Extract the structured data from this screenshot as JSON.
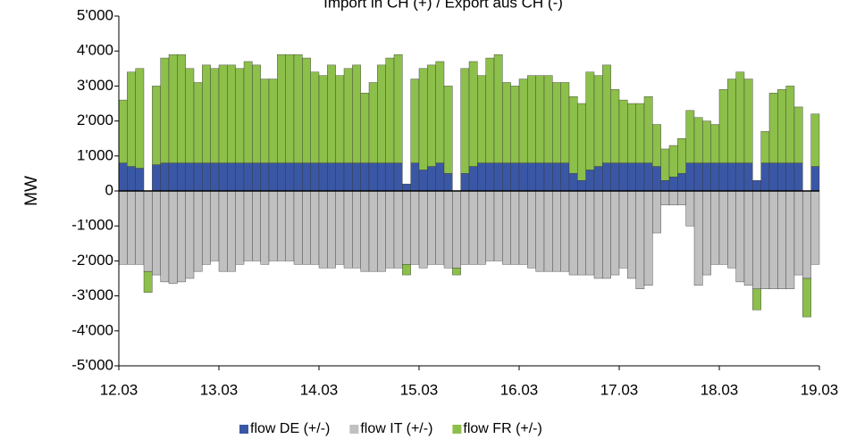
{
  "chart_data": {
    "type": "bar",
    "stacked": true,
    "title": "Import in CH  (+) / Export aus CH (-)",
    "y_label": "MW",
    "xlim": [
      0,
      7
    ],
    "xticks": [
      {
        "value": 0,
        "label": "12.03"
      },
      {
        "value": 1,
        "label": "13.03"
      },
      {
        "value": 2,
        "label": "14.03"
      },
      {
        "value": 3,
        "label": "15.03"
      },
      {
        "value": 4,
        "label": "16.03"
      },
      {
        "value": 5,
        "label": "17.03"
      },
      {
        "value": 6,
        "label": "18.03"
      },
      {
        "value": 7,
        "label": "19.03"
      }
    ],
    "ylim": [
      -5000,
      5000
    ],
    "yticks": [
      {
        "value": -5000,
        "label": "-5'000"
      },
      {
        "value": -4000,
        "label": "-4'000"
      },
      {
        "value": -3000,
        "label": "-3'000"
      },
      {
        "value": -2000,
        "label": "-2'000"
      },
      {
        "value": -1000,
        "label": "-1'000"
      },
      0,
      {
        "value": 1000,
        "label": "1'000"
      },
      {
        "value": 2000,
        "label": "2'000"
      },
      {
        "value": 3000,
        "label": "3'000"
      },
      {
        "value": 4000,
        "label": "4'000"
      },
      {
        "value": 5000,
        "label": "5'000"
      }
    ],
    "legend": "bottom",
    "series": [
      {
        "name": "flow DE (+/-)",
        "color": "#3a57a5",
        "values": [
          800,
          700,
          650,
          0,
          750,
          800,
          800,
          800,
          800,
          800,
          800,
          800,
          800,
          800,
          800,
          800,
          800,
          800,
          800,
          800,
          800,
          800,
          800,
          800,
          800,
          800,
          800,
          800,
          800,
          800,
          800,
          800,
          800,
          800,
          200,
          800,
          600,
          700,
          800,
          500,
          0,
          500,
          700,
          800,
          800,
          800,
          800,
          800,
          800,
          800,
          800,
          800,
          800,
          800,
          500,
          300,
          600,
          700,
          800,
          800,
          800,
          800,
          800,
          800,
          700,
          300,
          400,
          500,
          800,
          800,
          800,
          800,
          800,
          800,
          800,
          800,
          300,
          800,
          800,
          800,
          800,
          800,
          0,
          700
        ]
      },
      {
        "name": "flow IT (+/-)",
        "color": "#c0c0c0",
        "values": [
          -2100,
          -2100,
          -2100,
          -2300,
          -2400,
          -2600,
          -2650,
          -2600,
          -2500,
          -2300,
          -2100,
          -2000,
          -2300,
          -2300,
          -2100,
          -2000,
          -2000,
          -2100,
          -2000,
          -2000,
          -2000,
          -2100,
          -2100,
          -2100,
          -2200,
          -2200,
          -2100,
          -2200,
          -2200,
          -2300,
          -2300,
          -2300,
          -2200,
          -2200,
          -2100,
          -2100,
          -2200,
          -2100,
          -2100,
          -2200,
          -2200,
          -2100,
          -2100,
          -2100,
          -2000,
          -2000,
          -2100,
          -2100,
          -2100,
          -2200,
          -2300,
          -2300,
          -2300,
          -2300,
          -2400,
          -2400,
          -2400,
          -2500,
          -2500,
          -2400,
          -2200,
          -2500,
          -2800,
          -2700,
          -1200,
          -400,
          -400,
          -400,
          -1000,
          -2700,
          -2400,
          -2100,
          -2100,
          -2200,
          -2600,
          -2700,
          -2800,
          -2800,
          -2800,
          -2800,
          -2800,
          -2400,
          -2500,
          -2100
        ]
      },
      {
        "name": "flow FR (+/-)",
        "color": "#8dbf4b",
        "values": [
          1800,
          2700,
          2850,
          -600,
          2250,
          3000,
          3100,
          3100,
          2700,
          2300,
          2800,
          2700,
          2800,
          2800,
          2700,
          2900,
          2800,
          2400,
          2400,
          3100,
          3100,
          3100,
          3000,
          2600,
          2500,
          2800,
          2500,
          2700,
          2800,
          2000,
          2300,
          2800,
          3000,
          3100,
          -300,
          2400,
          2900,
          2900,
          2900,
          2500,
          -200,
          3000,
          3000,
          2500,
          3000,
          3100,
          2300,
          2200,
          2400,
          2500,
          2500,
          2500,
          2300,
          2300,
          2200,
          2200,
          2800,
          2600,
          2800,
          2100,
          1800,
          1700,
          1700,
          1900,
          1200,
          900,
          900,
          1000,
          1500,
          1300,
          1200,
          1100,
          2100,
          2400,
          2600,
          2400,
          -600,
          900,
          2000,
          2100,
          2200,
          1600,
          -1100,
          1500
        ]
      }
    ]
  }
}
